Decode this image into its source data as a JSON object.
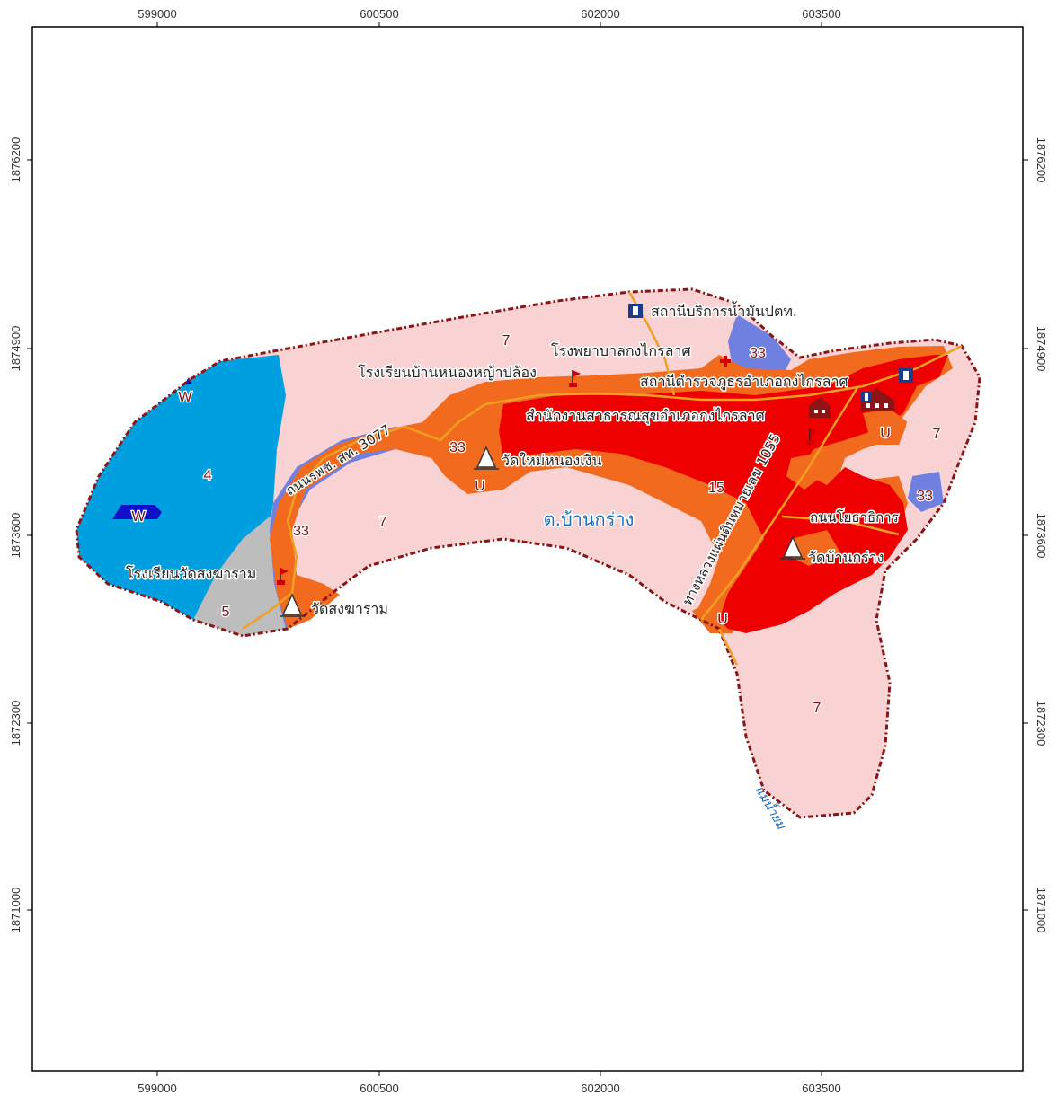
{
  "axes": {
    "x_ticks": [
      "599000",
      "600500",
      "602000",
      "603500"
    ],
    "y_ticks": [
      "1876200",
      "1874900",
      "1873600",
      "1872300",
      "1871000"
    ]
  },
  "zones": {
    "z7_north": "7",
    "z7_mid": "7",
    "z7_east": "7",
    "z7_south": "7",
    "z4": "4",
    "z5": "5",
    "z15": "15",
    "z33_north": "33",
    "z33_west": "33",
    "z33_mid": "33",
    "z33_east": "33",
    "u_mid": "U",
    "u_east": "U",
    "u_south": "U",
    "w_north": "W",
    "w_lake": "W"
  },
  "labels": {
    "place_name": "ต.บ้านกร่าง",
    "river": "แม่น้ำยม",
    "gas_station": "สถานีบริการน้ำมันปตท.",
    "hospital": "โรงพยาบาลกงไกรลาศ",
    "school_nong": "โรงเรียนบ้านหนองหญ้าปล้อง",
    "police": "สถานีตำรวจภูธรอำเภอกงไกรลาศ",
    "health_office": "สำนักงานสาธารณสุขอำเภอกงไกรลาศ",
    "wat_mai": "วัดใหม่หนองเงิน",
    "school_wat": "โรงเรียนวัดสงฆาราม",
    "wat_song": "วัดสงฆาราม",
    "wat_ban": "วัดบ้านกร่าง",
    "road_3077": "ถนนรพช. สท. 3077",
    "road_1055": "ทางหลวงแผ่นดินหมายเลข 1055",
    "road_yotha": "ถนนโยธาธิการ"
  },
  "colors": {
    "zone7": "#f9d3d3",
    "zone4": "#00a0e0",
    "zone5": "#bdbdbd",
    "zone15": "#ee0000",
    "zone33": "#7080e0",
    "zoneU": "#f26a1d",
    "zoneW": "#1010cc",
    "boundary": "#8b1414",
    "road": "#f0a020"
  }
}
